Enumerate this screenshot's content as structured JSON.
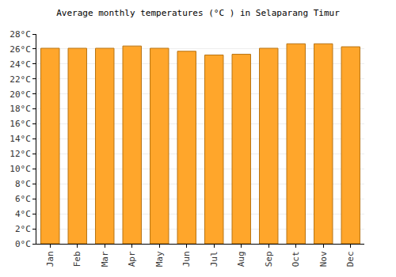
{
  "chart_data": {
    "type": "bar",
    "title": "Average monthly temperatures (°C ) in Selaparang Timur",
    "categories": [
      "Jan",
      "Feb",
      "Mar",
      "Apr",
      "May",
      "Jun",
      "Jul",
      "Aug",
      "Sep",
      "Oct",
      "Nov",
      "Dec"
    ],
    "values": [
      26.1,
      26.1,
      26.1,
      26.4,
      26.1,
      25.7,
      25.2,
      25.3,
      26.1,
      26.7,
      26.7,
      26.3
    ],
    "color": "#ffa62b",
    "ylim": [
      0,
      28
    ],
    "yticks": [
      {
        "value": 0,
        "label": "0°C"
      },
      {
        "value": 2,
        "label": "2°C"
      },
      {
        "value": 4,
        "label": "4°C"
      },
      {
        "value": 6,
        "label": "6°C"
      },
      {
        "value": 8,
        "label": "8°C"
      },
      {
        "value": 10,
        "label": "10°C"
      },
      {
        "value": 12,
        "label": "12°C"
      },
      {
        "value": 14,
        "label": "14°C"
      },
      {
        "value": 16,
        "label": "16°C"
      },
      {
        "value": 18,
        "label": "18°C"
      },
      {
        "value": 20,
        "label": "20°C"
      },
      {
        "value": 22,
        "label": "22°C"
      },
      {
        "value": 24,
        "label": "24°C"
      },
      {
        "value": 26,
        "label": "26°C"
      },
      {
        "value": 28,
        "label": "28°C"
      }
    ],
    "grid": true
  }
}
